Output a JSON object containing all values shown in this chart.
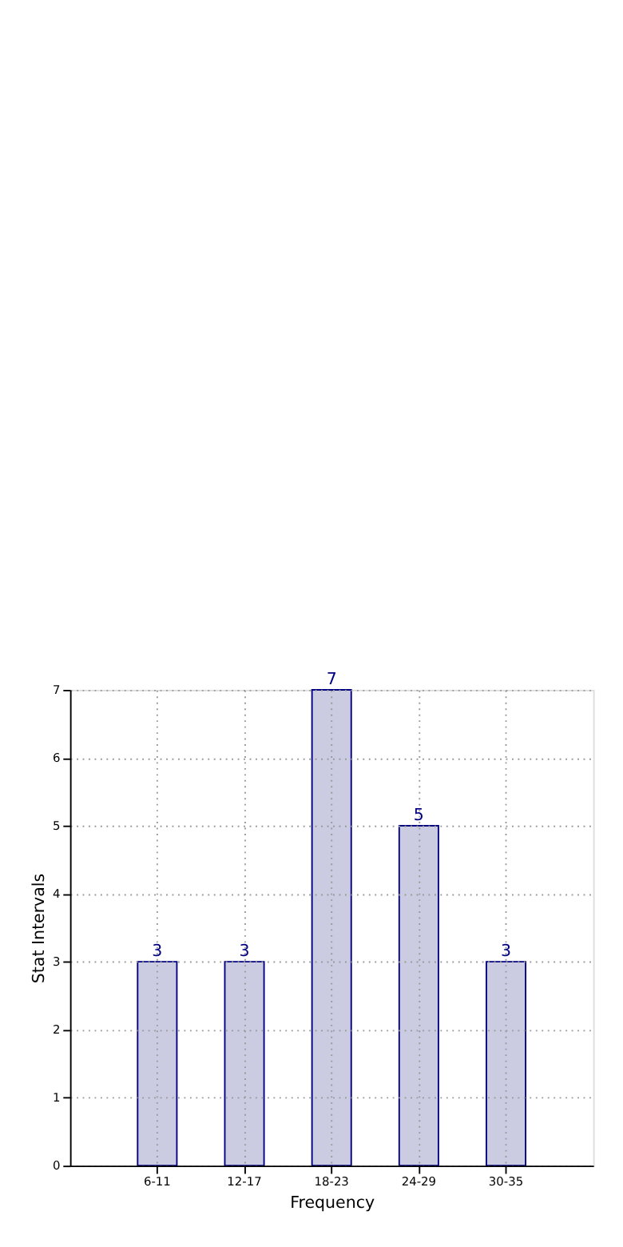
{
  "chart_data": {
    "type": "bar",
    "xlabel": "Frequency",
    "ylabel": "Stat Intervals",
    "categories": [
      "6-11",
      "12-17",
      "18-23",
      "24-29",
      "30-35"
    ],
    "series": [
      {
        "color": "#cbcbe2",
        "values": [
          3,
          3,
          7,
          5,
          3
        ]
      }
    ],
    "ylim": [
      0,
      7
    ],
    "yticks": [
      0,
      1,
      2,
      3,
      4,
      5,
      6,
      7
    ],
    "grid": true,
    "data_labels": true
  }
}
